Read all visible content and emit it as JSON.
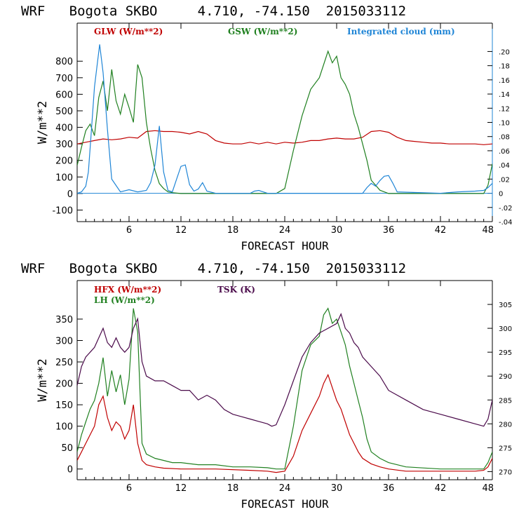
{
  "chart_data": [
    {
      "type": "line",
      "title": "WRF   Bogota SKBO     4.710, -74.150  2015033112",
      "xlabel": "FORECAST HOUR",
      "ylabel": "W/m**2",
      "xlim": [
        0,
        48
      ],
      "ylim": [
        -170,
        1030
      ],
      "ylim_right": [
        -0.04,
        0.24
      ],
      "x_ticks": [
        6,
        12,
        18,
        24,
        30,
        36,
        42,
        48
      ],
      "y_ticks": [
        -100,
        0,
        100,
        200,
        300,
        400,
        500,
        600,
        700,
        800
      ],
      "y_ticks_right": [
        "-.04",
        "-.02",
        "0",
        ".02",
        ".04",
        ".06",
        ".08",
        ".10",
        ".12",
        ".14",
        ".16",
        ".18",
        ".20"
      ],
      "y_ticks_right_values": [
        -0.04,
        -0.02,
        0,
        0.02,
        0.04,
        0.06,
        0.08,
        0.1,
        0.12,
        0.14,
        0.16,
        0.18,
        0.2
      ],
      "legend_position": "top",
      "colors": {
        "GLW": "#c00000",
        "GSW": "#208020",
        "CLOUD": "#1f85d6",
        "frame": "#000000",
        "right_axis": "#1f85d6"
      },
      "series": [
        {
          "name": "GLW (W/m**2)",
          "color_key": "GLW",
          "axis": "left",
          "x": [
            0,
            1,
            2,
            3,
            4,
            5,
            6,
            7,
            8,
            9,
            10,
            11,
            12,
            13,
            14,
            15,
            16,
            17,
            18,
            19,
            20,
            21,
            22,
            23,
            24,
            25,
            26,
            27,
            28,
            29,
            30,
            31,
            32,
            33,
            34,
            35,
            36,
            37,
            38,
            39,
            40,
            41,
            42,
            43,
            44,
            45,
            46,
            47,
            48
          ],
          "y": [
            300,
            310,
            320,
            330,
            325,
            330,
            340,
            335,
            375,
            380,
            375,
            375,
            370,
            360,
            375,
            360,
            320,
            305,
            300,
            300,
            310,
            300,
            310,
            300,
            310,
            305,
            310,
            320,
            320,
            330,
            335,
            330,
            330,
            340,
            375,
            380,
            370,
            340,
            320,
            315,
            310,
            305,
            305,
            300,
            300,
            300,
            300,
            295,
            300
          ]
        },
        {
          "name": "GSW (W/m**2)",
          "color_key": "GSW",
          "axis": "left",
          "x": [
            0,
            0.5,
            1,
            1.5,
            2,
            2.5,
            3,
            3.5,
            4,
            4.5,
            5,
            5.5,
            6,
            6.5,
            7,
            7.5,
            8,
            8.5,
            9,
            9.5,
            10,
            10.5,
            11,
            12,
            16,
            20,
            22,
            23,
            24,
            25,
            26,
            27,
            28,
            28.5,
            29,
            29.5,
            30,
            30.5,
            31,
            31.5,
            32,
            32.5,
            33,
            33.5,
            34,
            35,
            36,
            37,
            47,
            47.5,
            48
          ],
          "y": [
            170,
            280,
            380,
            420,
            350,
            580,
            680,
            500,
            750,
            560,
            480,
            600,
            520,
            430,
            780,
            700,
            430,
            270,
            140,
            60,
            30,
            10,
            5,
            0,
            0,
            0,
            0,
            0,
            30,
            260,
            470,
            630,
            700,
            780,
            860,
            790,
            830,
            700,
            660,
            600,
            480,
            400,
            300,
            200,
            80,
            20,
            0,
            0,
            0,
            50,
            180
          ]
        },
        {
          "name": "Integrated cloud (mm)",
          "color_key": "CLOUD",
          "axis": "right",
          "x": [
            0,
            0.5,
            1,
            1.3,
            1.6,
            2,
            2.3,
            2.6,
            3,
            3.5,
            4,
            5,
            6,
            7,
            8,
            8.5,
            9,
            9.5,
            10,
            10.5,
            11,
            11.5,
            12,
            12.5,
            13,
            13.5,
            14,
            14.5,
            15,
            16,
            20,
            20.5,
            21,
            21.5,
            22,
            30,
            33,
            33.5,
            34,
            34.5,
            35,
            35.5,
            36,
            36.5,
            37,
            42,
            44,
            46,
            47,
            47.5,
            48
          ],
          "y": [
            0,
            0.002,
            0.01,
            0.03,
            0.08,
            0.15,
            0.18,
            0.21,
            0.17,
            0.09,
            0.02,
            0.002,
            0.005,
            0.002,
            0.004,
            0.015,
            0.04,
            0.095,
            0.03,
            0.004,
            0.002,
            0.02,
            0.038,
            0.04,
            0.012,
            0.003,
            0.006,
            0.015,
            0.003,
            0,
            0,
            0.003,
            0.004,
            0.002,
            0,
            0,
            0,
            0.008,
            0.014,
            0.01,
            0.018,
            0.024,
            0.025,
            0.014,
            0.002,
            0,
            0.002,
            0.003,
            0.004,
            0.008,
            0.014
          ]
        }
      ]
    },
    {
      "type": "line",
      "title": "WRF   Bogota SKBO     4.710, -74.150  2015033112",
      "xlabel": "FORECAST HOUR",
      "ylabel": "W/m**2",
      "xlim": [
        0,
        48
      ],
      "ylim": [
        -25,
        440
      ],
      "ylim_right": [
        268.3,
        310
      ],
      "x_ticks": [
        6,
        12,
        18,
        24,
        30,
        36,
        42,
        48
      ],
      "y_ticks": [
        0,
        50,
        100,
        150,
        200,
        250,
        300,
        350
      ],
      "y_ticks_right": [
        "270",
        "275",
        "280",
        "285",
        "290",
        "295",
        "300",
        "305"
      ],
      "y_ticks_right_values": [
        270,
        275,
        280,
        285,
        290,
        295,
        300,
        305
      ],
      "legend_position": "top",
      "colors": {
        "HFX": "#c00000",
        "LH": "#208020",
        "TSK": "#4a0a4a",
        "frame": "#000000"
      },
      "series": [
        {
          "name": "HFX (W/m**2)",
          "color_key": "HFX",
          "axis": "left",
          "x": [
            0,
            0.5,
            1,
            1.5,
            2,
            2.5,
            3,
            3.5,
            4,
            4.5,
            5,
            5.5,
            6,
            6.5,
            7,
            7.5,
            8,
            9,
            10,
            12,
            16,
            20,
            22,
            23,
            24,
            25,
            26,
            27,
            28,
            28.5,
            29,
            29.5,
            30,
            30.5,
            31,
            31.5,
            32,
            32.5,
            33,
            34,
            35,
            36,
            38,
            42,
            46,
            47,
            47.5,
            48
          ],
          "y": [
            20,
            40,
            60,
            80,
            100,
            150,
            170,
            120,
            90,
            110,
            100,
            70,
            90,
            150,
            60,
            20,
            10,
            5,
            2,
            0,
            0,
            -3,
            -5,
            -8,
            -5,
            30,
            90,
            130,
            170,
            200,
            220,
            190,
            160,
            140,
            110,
            80,
            60,
            40,
            25,
            12,
            5,
            0,
            -5,
            -5,
            -5,
            -3,
            5,
            25
          ]
        },
        {
          "name": "LH  (W/m**2)",
          "color_key": "LH",
          "axis": "left",
          "x": [
            0,
            0.5,
            1,
            1.5,
            2,
            2.5,
            3,
            3.5,
            4,
            4.5,
            5,
            5.5,
            6,
            6.5,
            7,
            7.5,
            8,
            9,
            10,
            11,
            12,
            14,
            16,
            18,
            20,
            22,
            23,
            24,
            25,
            26,
            27,
            28,
            28.5,
            29,
            29.5,
            30,
            30.5,
            31,
            31.5,
            32,
            32.5,
            33,
            33.5,
            34,
            35,
            36,
            38,
            42,
            46,
            47,
            47.5,
            48
          ],
          "y": [
            40,
            80,
            110,
            140,
            160,
            200,
            260,
            170,
            230,
            180,
            220,
            150,
            210,
            375,
            320,
            60,
            35,
            25,
            20,
            15,
            15,
            10,
            10,
            5,
            5,
            3,
            0,
            0,
            100,
            230,
            290,
            310,
            360,
            375,
            340,
            350,
            320,
            290,
            240,
            200,
            160,
            120,
            70,
            40,
            25,
            15,
            5,
            0,
            0,
            0,
            15,
            40
          ]
        },
        {
          "name": "TSK (K)",
          "color_key": "TSK",
          "axis": "right",
          "x": [
            0,
            0.5,
            1,
            1.5,
            2,
            2.5,
            3,
            3.5,
            4,
            4.5,
            5,
            5.5,
            6,
            6.5,
            7,
            7.5,
            8,
            9,
            10,
            11,
            12,
            13,
            14,
            15,
            16,
            17,
            18,
            19,
            20,
            21,
            22,
            22.5,
            23,
            24,
            25,
            26,
            27,
            28,
            29,
            30,
            30.5,
            31,
            31.5,
            32,
            32.5,
            33,
            34,
            35,
            36,
            38,
            40,
            42,
            44,
            46,
            47,
            47.5,
            48
          ],
          "y": [
            288,
            292,
            294,
            295,
            296,
            298,
            300,
            297,
            296,
            298,
            296,
            295,
            296,
            300,
            302,
            293,
            290,
            289,
            289,
            288,
            287,
            287,
            285,
            286,
            285,
            283,
            282,
            281.5,
            281,
            280.5,
            280,
            279.5,
            279.8,
            284,
            289,
            294,
            297,
            299,
            300,
            301,
            303,
            300,
            299,
            297,
            296,
            294,
            292,
            290,
            287,
            285,
            283,
            282,
            281,
            280,
            279.5,
            281,
            285
          ]
        }
      ]
    }
  ]
}
